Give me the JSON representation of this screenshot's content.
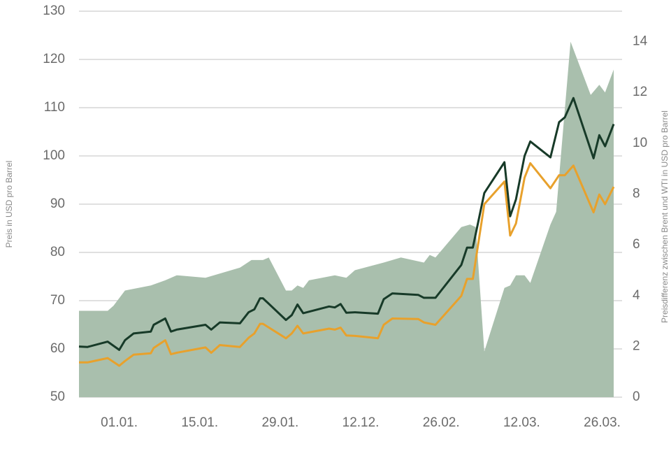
{
  "chart_data": {
    "type": "line",
    "y_label": "Preis in USD pro Barrel",
    "y2_label": "Preisdifferenz zwischen Brent und WTI in USD pro Barrel",
    "xlim": [
      0,
      93
    ],
    "xticks": [
      {
        "value": 7,
        "label": "01.01."
      },
      {
        "value": 21,
        "label": "15.01."
      },
      {
        "value": 35,
        "label": "29.01."
      },
      {
        "value": 49,
        "label": "12.12."
      },
      {
        "value": 63,
        "label": "26.02."
      },
      {
        "value": 77,
        "label": "12.03."
      },
      {
        "value": 91,
        "label": "26.03."
      }
    ],
    "ylim": [
      50,
      130
    ],
    "yticks": [
      50,
      60,
      70,
      80,
      90,
      100,
      110,
      120,
      130
    ],
    "y2lim": [
      0,
      15.2
    ],
    "y2ticks": [
      0,
      2,
      4,
      6,
      8,
      10,
      12,
      14
    ],
    "grid": true,
    "series": [
      {
        "type": "area",
        "axis": "y2",
        "color": "#a9bfad",
        "x": [
          0,
          5,
          6,
          8,
          12.5,
          15,
          17,
          22,
          28,
          30,
          32,
          33,
          36,
          37,
          38,
          39,
          40,
          44.5,
          46.5,
          48,
          53,
          56,
          60,
          61,
          62,
          66.5,
          68,
          69,
          70.5,
          74,
          75,
          76,
          77.5,
          78.5,
          82,
          83,
          85.5,
          89,
          90.5,
          91.5,
          93
        ],
        "values": [
          3.4,
          3.4,
          3.6,
          4.2,
          4.4,
          4.6,
          4.8,
          4.7,
          5.1,
          5.4,
          5.4,
          5.5,
          4.2,
          4.2,
          4.4,
          4.3,
          4.6,
          4.8,
          4.7,
          5.0,
          5.3,
          5.5,
          5.3,
          5.6,
          5.5,
          6.7,
          6.8,
          6.7,
          1.8,
          4.3,
          4.4,
          4.8,
          4.8,
          4.5,
          6.8,
          7.3,
          14.0,
          11.9,
          12.3,
          12.0,
          12.9
        ]
      },
      {
        "type": "line",
        "color": "#e8a12c",
        "x": [
          0,
          1.5,
          5,
          7,
          8,
          9.5,
          12.5,
          13,
          15,
          16,
          17,
          22,
          23,
          24.5,
          28,
          29.5,
          30.5,
          31.5,
          32,
          36,
          37,
          38,
          39,
          43.5,
          44.5,
          45.5,
          46.5,
          48,
          52,
          53,
          54.5,
          59,
          60,
          62,
          66.5,
          67.5,
          68.5,
          70.5,
          74,
          75,
          76,
          77.5,
          78.5,
          82,
          83.5,
          84.5,
          86,
          89.5,
          90.5,
          91.5,
          93
        ],
        "values": [
          57.2,
          57.2,
          58.1,
          56.5,
          57.5,
          58.8,
          59.1,
          60.2,
          61.8,
          58.9,
          59.2,
          60.3,
          59.2,
          60.8,
          60.4,
          62.3,
          63.2,
          65.2,
          65.2,
          62.2,
          63.2,
          64.8,
          63.2,
          64.2,
          64.0,
          64.4,
          62.8,
          62.7,
          62.2,
          65.0,
          66.3,
          66.2,
          65.5,
          65.0,
          71.0,
          74.5,
          74.5,
          90.0,
          94.7,
          83.5,
          86.0,
          95.5,
          98.5,
          93.3,
          96.0,
          96.0,
          98.0,
          88.3,
          92.0,
          90.0,
          93.6
        ]
      },
      {
        "type": "line",
        "color": "#173a28",
        "x": [
          0,
          1.5,
          5,
          7,
          8,
          9.5,
          12.5,
          13,
          15,
          16,
          17,
          22,
          23,
          24.5,
          28,
          29.5,
          30.5,
          31.5,
          32,
          36,
          37,
          38,
          39,
          43.5,
          44.5,
          45.5,
          46.5,
          48,
          52,
          53,
          54.5,
          59,
          60,
          62,
          66.5,
          67.5,
          68.5,
          70.5,
          74,
          75,
          76,
          77.5,
          78.5,
          82,
          83.5,
          84.5,
          86,
          89.5,
          90.5,
          91.5,
          93
        ],
        "values": [
          60.5,
          60.4,
          61.5,
          59.8,
          61.8,
          63.2,
          63.6,
          65.0,
          66.3,
          63.6,
          64.0,
          65.0,
          64.0,
          65.5,
          65.3,
          67.6,
          68.2,
          70.5,
          70.5,
          66.0,
          67.0,
          69.2,
          67.4,
          68.8,
          68.6,
          69.3,
          67.5,
          67.6,
          67.3,
          70.3,
          71.5,
          71.2,
          70.6,
          70.6,
          77.4,
          81.0,
          81.0,
          92.3,
          98.7,
          87.5,
          91.0,
          100.0,
          103.0,
          99.7,
          107.0,
          108.0,
          112.0,
          99.5,
          104.3,
          102.0,
          106.6
        ]
      }
    ]
  }
}
